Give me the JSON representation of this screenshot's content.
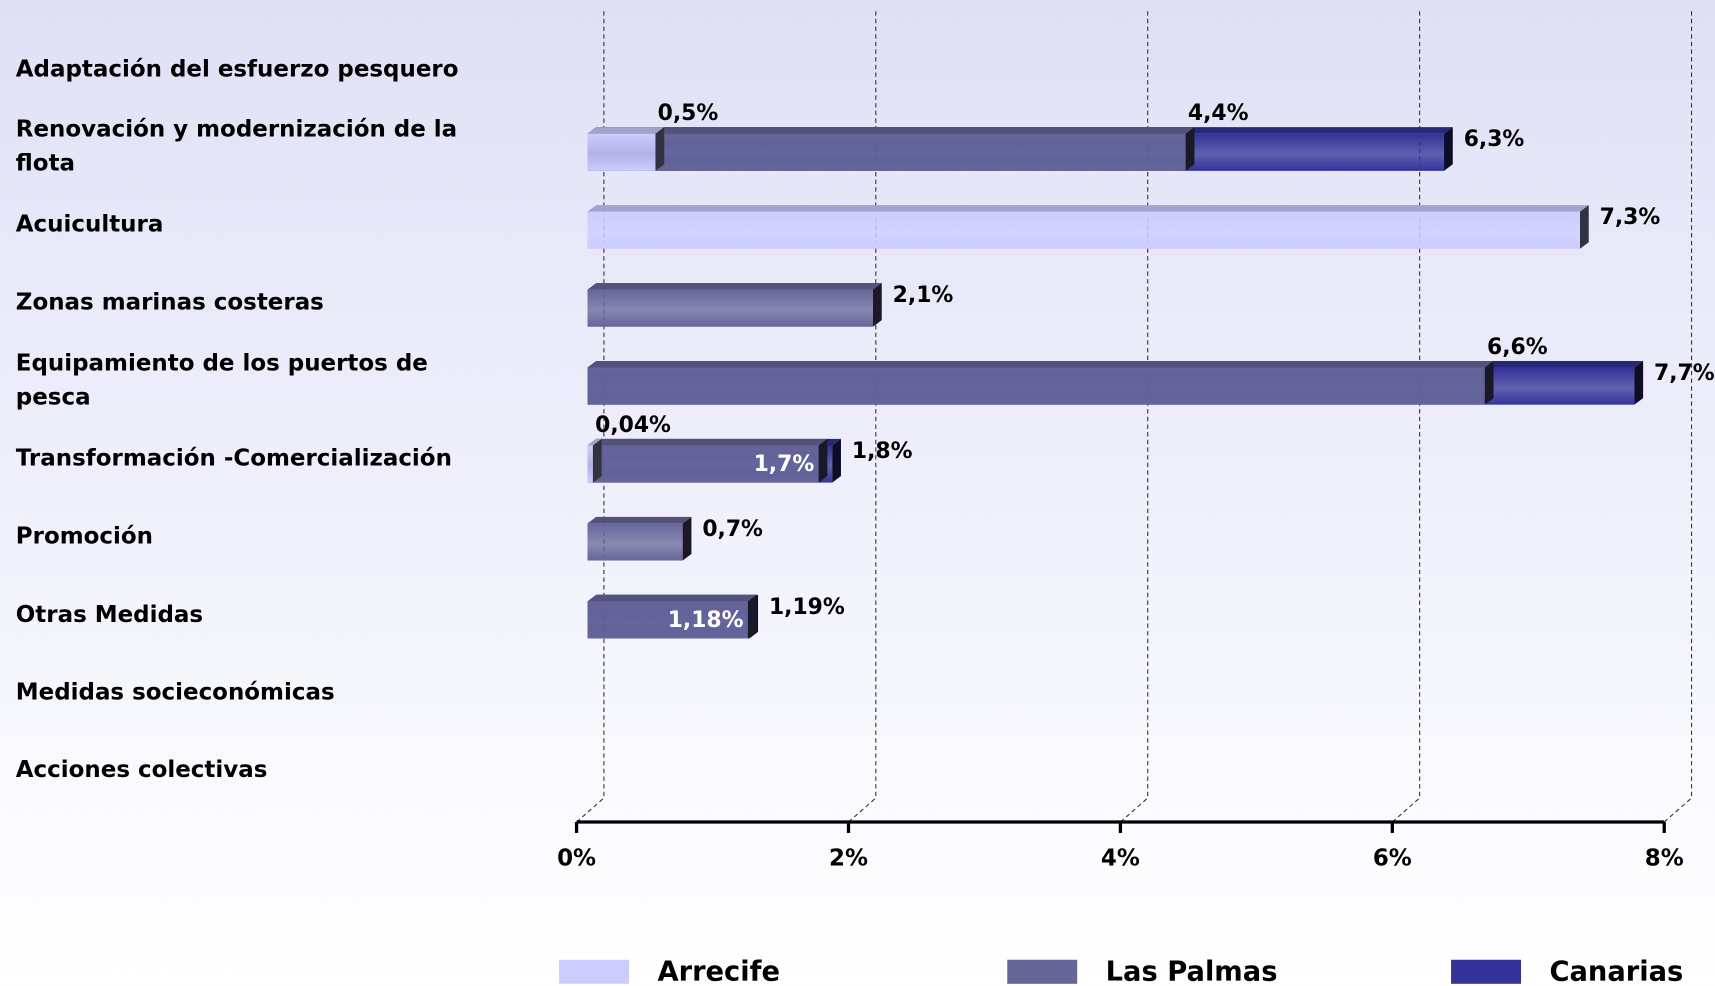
{
  "chart_data": {
    "type": "bar",
    "orientation": "horizontal",
    "categories": [
      "Adaptación del esfuerzo pesquero",
      "Renovación y modernización de la flota",
      "Acuicultura",
      "Zonas marinas costeras",
      "Equipamiento de los puertos de pesca",
      "Transformación -Comercialización",
      "Promoción",
      "Otras Medidas",
      "Medidas socieconómicas",
      "Acciones colectivas"
    ],
    "series": [
      {
        "name": "Arrecife",
        "color": "#ccccff",
        "values": [
          null,
          0.5,
          7.3,
          null,
          null,
          0.04,
          null,
          null,
          null,
          null
        ],
        "value_labels": [
          null,
          "0,5%",
          "7,3%",
          null,
          null,
          "0,04%",
          null,
          null,
          null,
          null
        ]
      },
      {
        "name": "Las Palmas",
        "color": "#666699",
        "values": [
          null,
          4.4,
          null,
          2.1,
          6.6,
          1.7,
          0.7,
          1.18,
          null,
          null
        ],
        "value_labels": [
          null,
          "4,4%",
          null,
          "2,1%",
          "6,6%",
          "1,7%",
          "0,7%",
          "1,18%",
          null,
          null
        ]
      },
      {
        "name": "Canarias",
        "color": "#333399",
        "values": [
          null,
          6.3,
          null,
          null,
          7.7,
          1.8,
          null,
          1.19,
          null,
          null
        ],
        "value_labels": [
          null,
          "6,3%",
          null,
          null,
          "7,7%",
          "1,8%",
          null,
          "1,19%",
          null,
          null
        ]
      }
    ],
    "xlim": [
      0,
      8
    ],
    "xticks": [
      {
        "value": 0,
        "label": "0%"
      },
      {
        "value": 2,
        "label": "2%"
      },
      {
        "value": 4,
        "label": "4%"
      },
      {
        "value": 6,
        "label": "6%"
      },
      {
        "value": 8,
        "label": "8%"
      }
    ],
    "grid": true,
    "legend": "bottom"
  }
}
